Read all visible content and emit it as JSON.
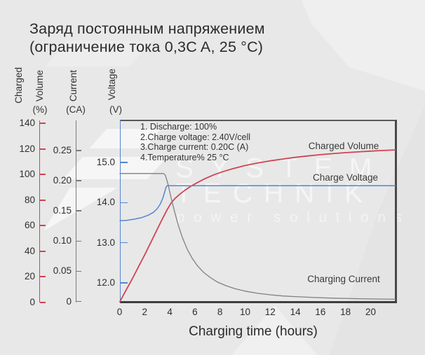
{
  "title": {
    "line1": "Заряд постоянным напряжением",
    "line2": "(ограничение тока 0,3C A, 25 °C)"
  },
  "watermark": {
    "line1": "SYSTEM",
    "line2": "TECHNIK",
    "line3": "power solutions"
  },
  "chart_data": {
    "type": "line",
    "title": "Заряд постоянным напряжением (ограничение тока 0,3C A, 25 °C)",
    "xlabel": "Charging time (hours)",
    "x_range": [
      0,
      22
    ],
    "x_ticks": [
      "0",
      "2",
      "4",
      "6",
      "8",
      "10",
      "12",
      "14",
      "16",
      "18",
      "20"
    ],
    "grid": false,
    "legend_position": "inline-labels",
    "notes": [
      "1. Discharge: 100%",
      "2.Charge voltage: 2.40V/cell",
      "3.Charge current: 0.20C (A)",
      "4.Temperature% 25 °C"
    ],
    "axes": {
      "charged_volume": {
        "words": [
          "Charged",
          "Volume"
        ],
        "unit": "(%)",
        "range": [
          0,
          140
        ],
        "ticks": [
          "0",
          "20",
          "40",
          "60",
          "80",
          "100",
          "120",
          "140"
        ],
        "color": "#cf4452"
      },
      "current": {
        "words": [
          "Current"
        ],
        "unit": "(CA)",
        "range": [
          0,
          0.3
        ],
        "ticks": [
          "0",
          "0.05",
          "0.10",
          "0.15",
          "0.20",
          "0.25"
        ],
        "color": "#7a7a7a"
      },
      "voltage": {
        "words": [
          "Voltage"
        ],
        "unit": "(V)",
        "range": [
          11.5,
          15.5
        ],
        "ticks": [
          "12.0",
          "13.0",
          "14.0",
          "15.0"
        ],
        "color": "#5585d0"
      }
    },
    "series": [
      {
        "name": "Charged Volume",
        "axis": "charged_volume",
        "color": "#cf4452",
        "points": [
          [
            0,
            0
          ],
          [
            0.5,
            9
          ],
          [
            1,
            18
          ],
          [
            1.5,
            27.5
          ],
          [
            2,
            37
          ],
          [
            2.5,
            47
          ],
          [
            3,
            57
          ],
          [
            3.4,
            65
          ],
          [
            3.8,
            72.5
          ],
          [
            4.1,
            77.5
          ],
          [
            4.4,
            81
          ],
          [
            4.8,
            84.5
          ],
          [
            5.2,
            87.5
          ],
          [
            5.7,
            90.8
          ],
          [
            6.2,
            93.6
          ],
          [
            6.8,
            96.6
          ],
          [
            7.5,
            99.6
          ],
          [
            8.2,
            102
          ],
          [
            9,
            104.4
          ],
          [
            10,
            106.9
          ],
          [
            11,
            108.9
          ],
          [
            12,
            110.6
          ],
          [
            13,
            112
          ],
          [
            14,
            113.3
          ],
          [
            15,
            114.4
          ],
          [
            16,
            115.4
          ],
          [
            17,
            116.2
          ],
          [
            18,
            117
          ],
          [
            19,
            117.6
          ],
          [
            20,
            118.2
          ],
          [
            21,
            118.7
          ],
          [
            22,
            119.1
          ]
        ]
      },
      {
        "name": "Charge Voltage",
        "axis": "voltage",
        "color": "#5585d0",
        "points": [
          [
            0,
            13.55
          ],
          [
            0.6,
            13.56
          ],
          [
            1.2,
            13.59
          ],
          [
            1.8,
            13.63
          ],
          [
            2.3,
            13.69
          ],
          [
            2.7,
            13.76
          ],
          [
            3.0,
            13.85
          ],
          [
            3.25,
            13.97
          ],
          [
            3.45,
            14.12
          ],
          [
            3.6,
            14.27
          ],
          [
            3.7,
            14.38
          ],
          [
            3.78,
            14.42
          ],
          [
            22,
            14.42
          ]
        ]
      },
      {
        "name": "Charging Current",
        "axis": "current",
        "color": "#808080",
        "points": [
          [
            0,
            0.212
          ],
          [
            3.5,
            0.212
          ],
          [
            3.65,
            0.209
          ],
          [
            3.85,
            0.195
          ],
          [
            4.1,
            0.172
          ],
          [
            4.4,
            0.147
          ],
          [
            4.7,
            0.125
          ],
          [
            5.0,
            0.106
          ],
          [
            5.4,
            0.086
          ],
          [
            5.8,
            0.071
          ],
          [
            6.2,
            0.059
          ],
          [
            6.7,
            0.048
          ],
          [
            7.2,
            0.04
          ],
          [
            7.8,
            0.032
          ],
          [
            8.5,
            0.026
          ],
          [
            9.2,
            0.021
          ],
          [
            10,
            0.017
          ],
          [
            11,
            0.0135
          ],
          [
            12,
            0.011
          ],
          [
            13,
            0.009
          ],
          [
            14,
            0.008
          ],
          [
            15.5,
            0.0065
          ],
          [
            17,
            0.0055
          ],
          [
            18.5,
            0.0048
          ],
          [
            20,
            0.0042
          ],
          [
            22,
            0.0036
          ]
        ]
      }
    ]
  }
}
